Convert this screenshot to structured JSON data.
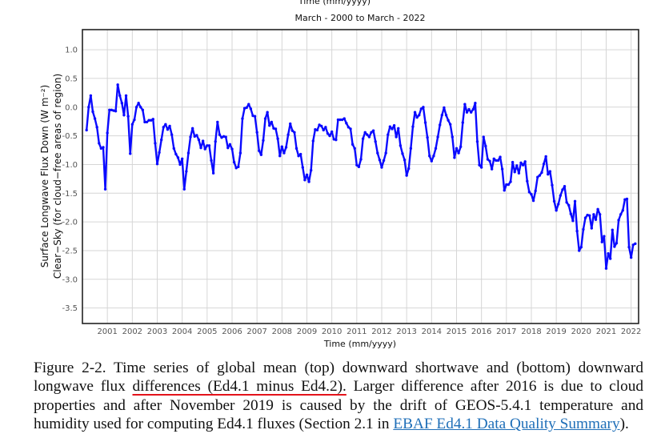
{
  "chart_data": {
    "type": "line",
    "top_clipped_label": "Time (mm/yyyy)",
    "title": "March - 2000 to March - 2022",
    "xlabel": "Time (mm/yyyy)",
    "ylabel_line1": "Surface Longwave Flux Down (W m⁻²)",
    "ylabel_line2": "Clear−Sky (for cloud−free areas of region)",
    "xlim": [
      2000.0,
      2022.3
    ],
    "ylim": [
      -3.77,
      1.35
    ],
    "x_ticks": [
      2001,
      2002,
      2003,
      2004,
      2005,
      2006,
      2007,
      2008,
      2009,
      2010,
      2011,
      2012,
      2013,
      2014,
      2015,
      2016,
      2017,
      2018,
      2019,
      2020,
      2021,
      2022
    ],
    "y_ticks": [
      "1.0",
      "0.5",
      "0.0",
      "-0.5",
      "-1.0",
      "-1.5",
      "-2.0",
      "-2.5",
      "-3.0",
      "-3.5"
    ],
    "grid": true,
    "start": "2000-03",
    "interval": "monthly",
    "series": [
      {
        "name": "Ed4.1 minus Ed4.2",
        "color": "#0a0aff",
        "values": [
          -0.4,
          0.0,
          0.2,
          -0.08,
          -0.2,
          -0.35,
          -0.63,
          -0.72,
          -0.7,
          -1.43,
          -0.45,
          -0.05,
          -0.05,
          -0.06,
          -0.07,
          0.39,
          0.2,
          0.07,
          -0.14,
          0.2,
          -0.16,
          -0.81,
          -0.3,
          -0.22,
          0.0,
          0.07,
          0.0,
          -0.05,
          -0.26,
          -0.26,
          -0.23,
          -0.23,
          -0.21,
          -0.63,
          -0.99,
          -0.79,
          -0.57,
          -0.35,
          -0.3,
          -0.39,
          -0.33,
          -0.48,
          -0.72,
          -0.82,
          -0.88,
          -1.0,
          -0.9,
          -1.43,
          -1.12,
          -0.8,
          -0.52,
          -0.37,
          -0.51,
          -0.49,
          -0.57,
          -0.71,
          -0.59,
          -0.73,
          -0.67,
          -0.67,
          -0.93,
          -1.15,
          -0.6,
          -0.26,
          -0.48,
          -0.53,
          -0.51,
          -0.52,
          -0.71,
          -0.65,
          -0.73,
          -0.96,
          -1.06,
          -1.04,
          -0.8,
          -0.2,
          -0.02,
          -0.01,
          0.05,
          -0.03,
          -0.15,
          -0.16,
          -0.44,
          -0.76,
          -0.83,
          -0.58,
          -0.2,
          -0.09,
          -0.32,
          -0.26,
          -0.37,
          -0.38,
          -0.55,
          -0.85,
          -0.69,
          -0.8,
          -0.7,
          -0.48,
          -0.29,
          -0.41,
          -0.44,
          -0.72,
          -0.85,
          -0.82,
          -1.05,
          -1.27,
          -1.18,
          -1.3,
          -1.1,
          -0.59,
          -0.39,
          -0.4,
          -0.31,
          -0.33,
          -0.4,
          -0.35,
          -0.46,
          -0.5,
          -0.43,
          -0.56,
          -0.57,
          -0.22,
          -0.22,
          -0.22,
          -0.2,
          -0.28,
          -0.35,
          -0.38,
          -0.65,
          -0.72,
          -1.01,
          -1.04,
          -0.91,
          -0.55,
          -0.44,
          -0.48,
          -0.52,
          -0.44,
          -0.41,
          -0.6,
          -0.8,
          -0.92,
          -1.05,
          -0.93,
          -0.8,
          -0.48,
          -0.34,
          -0.38,
          -0.32,
          -0.52,
          -0.37,
          -0.67,
          -0.81,
          -0.92,
          -1.19,
          -1.07,
          -0.72,
          -0.34,
          -0.09,
          -0.18,
          -0.14,
          -0.03,
          0.0,
          -0.27,
          -0.53,
          -0.85,
          -0.94,
          -0.85,
          -0.72,
          -0.52,
          -0.31,
          -0.14,
          -0.01,
          -0.14,
          -0.23,
          -0.3,
          -0.52,
          -0.88,
          -0.72,
          -0.8,
          -0.69,
          -0.27,
          0.05,
          -0.09,
          -0.04,
          -0.09,
          -0.04,
          0.07,
          -0.6,
          -1.01,
          -1.05,
          -0.52,
          -0.68,
          -0.91,
          -0.94,
          -1.08,
          -0.9,
          -0.93,
          -0.93,
          -0.87,
          -1.08,
          -1.45,
          -1.35,
          -1.35,
          -1.3,
          -0.96,
          -1.13,
          -1.02,
          -1.15,
          -0.97,
          -1.01,
          -0.95,
          -1.29,
          -1.48,
          -1.52,
          -1.63,
          -1.46,
          -1.22,
          -1.19,
          -1.14,
          -0.99,
          -0.86,
          -1.17,
          -1.12,
          -1.36,
          -1.64,
          -1.8,
          -1.69,
          -1.54,
          -1.44,
          -1.38,
          -1.66,
          -1.71,
          -1.86,
          -1.98,
          -1.64,
          -2.16,
          -2.5,
          -2.44,
          -2.13,
          -1.93,
          -1.88,
          -1.89,
          -2.11,
          -1.87,
          -1.96,
          -1.78,
          -1.87,
          -2.35,
          -2.25,
          -2.81,
          -2.55,
          -2.64,
          -2.14,
          -2.43,
          -2.37,
          -1.97,
          -1.87,
          -1.8,
          -1.61,
          -1.6,
          -2.44,
          -2.62,
          -2.4,
          -2.38
        ]
      }
    ]
  },
  "caption": {
    "part1": "Figure 2-2. Time series of global mean (top) downward shortwave and (bottom) downward longwave flux ",
    "underlined": "differences (Ed4.1 minus Ed4.2).",
    "part2": " Larger difference after 2016 is due to cloud properties and after November 2019 is caused by the drift of GEOS-5.4.1 temperature and humidity used for computing Ed4.1 fluxes (Section 2.1 in ",
    "link": "EBAF Ed4.1 Data Quality Summary",
    "part3": ")."
  }
}
